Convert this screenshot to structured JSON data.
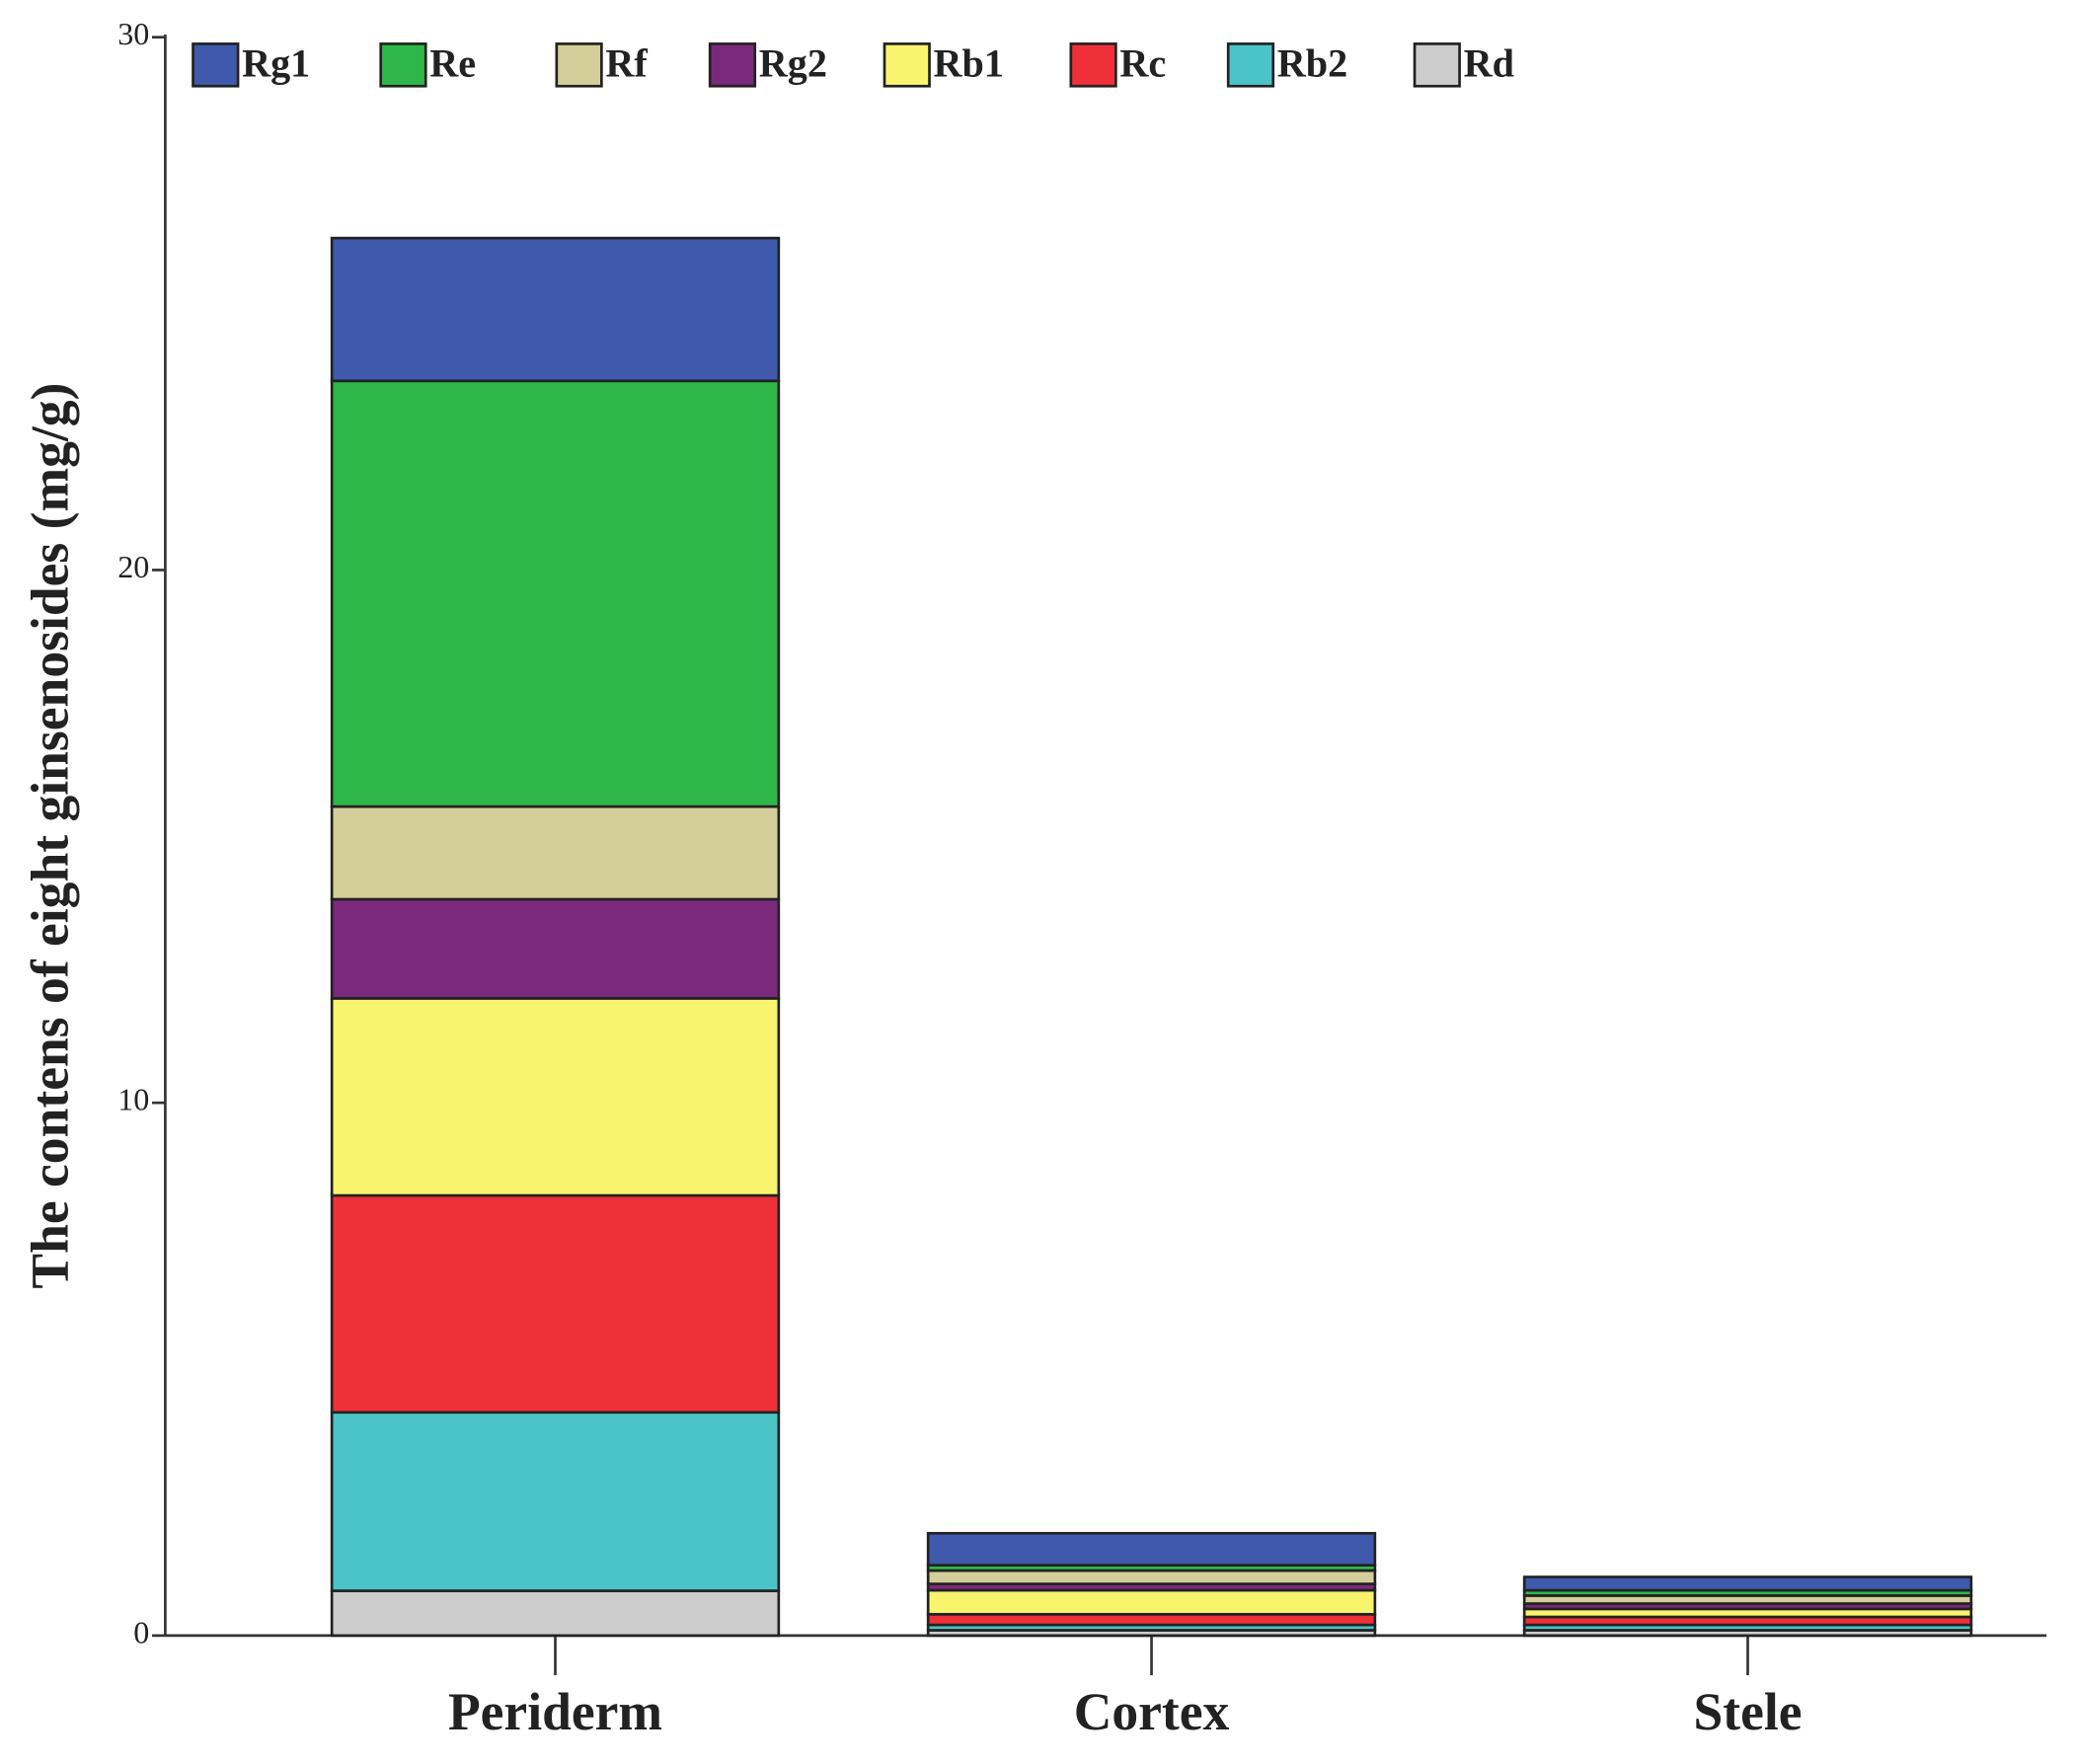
{
  "chart_data": {
    "type": "stacked_bar",
    "y_label": "The contens of eight ginsenosides (mg/g)",
    "categories": [
      "Periderm",
      "Cortex",
      "Stele"
    ],
    "series": [
      {
        "name": "Rg1",
        "color": "#3f5aad",
        "values": [
          2.68,
          0.6,
          0.25
        ]
      },
      {
        "name": "Re",
        "color": "#2eb84a",
        "values": [
          7.99,
          0.1,
          0.1
        ]
      },
      {
        "name": "Rf",
        "color": "#d4cf9a",
        "values": [
          1.74,
          0.25,
          0.15
        ]
      },
      {
        "name": "Rg2",
        "color": "#7b2a7b",
        "values": [
          1.86,
          0.12,
          0.1
        ]
      },
      {
        "name": "Rb1",
        "color": "#f8f46e",
        "values": [
          3.7,
          0.45,
          0.15
        ]
      },
      {
        "name": "Rc",
        "color": "#ef3038",
        "values": [
          4.07,
          0.2,
          0.15
        ]
      },
      {
        "name": "Rb2",
        "color": "#4bc4c8",
        "values": [
          3.35,
          0.1,
          0.1
        ]
      },
      {
        "name": "Rd",
        "color": "#cccccc",
        "values": [
          0.84,
          0.1,
          0.1
        ]
      }
    ],
    "ylim": [
      0,
      30
    ],
    "yticks": [
      0,
      10,
      20,
      30
    ]
  }
}
